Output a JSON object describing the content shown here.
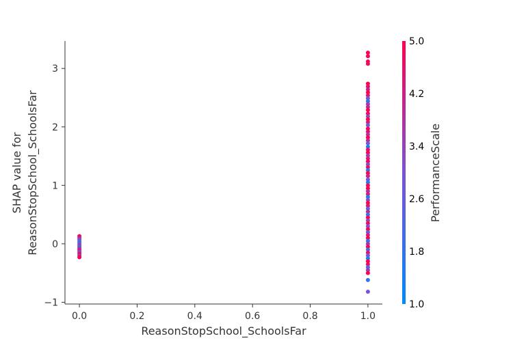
{
  "chart_data": {
    "type": "scatter",
    "title": "",
    "xlabel": "ReasonStopSchool_SchoolsFar",
    "ylabel_lines": [
      "SHAP value for",
      "ReasonStopSchool_SchoolsFar"
    ],
    "xlim": [
      -0.05,
      1.05
    ],
    "ylim": [
      -1.03,
      3.47
    ],
    "x_ticks": [
      0.0,
      0.2,
      0.4,
      0.6,
      0.8,
      1.0
    ],
    "x_tick_labels": [
      "0.0",
      "0.2",
      "0.4",
      "0.6",
      "0.8",
      "1.0"
    ],
    "y_ticks": [
      -1,
      0,
      1,
      2,
      3
    ],
    "y_tick_labels": [
      "−1",
      "0",
      "1",
      "2",
      "3"
    ],
    "grid": false,
    "colorbar": {
      "label": "PerformanceScale",
      "range": [
        1.0,
        5.0
      ],
      "ticks": [
        1.0,
        1.8,
        2.6,
        3.4,
        4.2,
        5.0
      ],
      "tick_labels": [
        "1.0",
        "1.8",
        "2.6",
        "3.4",
        "4.2",
        "5.0"
      ],
      "colors": [
        "#008afb",
        "#7c52d5",
        "#ff0052"
      ]
    },
    "series": [
      {
        "x": 0.0,
        "points": [
          {
            "y": 0.13,
            "c": 5.0
          },
          {
            "y": 0.1,
            "c": 4.0
          },
          {
            "y": 0.07,
            "c": 3.0
          },
          {
            "y": 0.04,
            "c": 2.5
          },
          {
            "y": 0.01,
            "c": 2.0
          },
          {
            "y": -0.02,
            "c": 3.5
          },
          {
            "y": -0.05,
            "c": 2.2
          },
          {
            "y": -0.08,
            "c": 3.8
          },
          {
            "y": -0.11,
            "c": 4.4
          },
          {
            "y": -0.14,
            "c": 3.0
          },
          {
            "y": -0.17,
            "c": 4.8
          },
          {
            "y": -0.2,
            "c": 3.6
          },
          {
            "y": -0.23,
            "c": 5.0
          }
        ]
      },
      {
        "x": 1.0,
        "points": [
          {
            "y": 3.27,
            "c": 5.0
          },
          {
            "y": 3.21,
            "c": 4.9
          },
          {
            "y": 3.12,
            "c": 5.0
          },
          {
            "y": 3.08,
            "c": 4.8
          },
          {
            "y": 2.74,
            "c": 5.0
          },
          {
            "y": 2.69,
            "c": 4.6
          },
          {
            "y": 2.64,
            "c": 4.2
          },
          {
            "y": 2.59,
            "c": 5.0
          },
          {
            "y": 2.54,
            "c": 4.5
          },
          {
            "y": 2.49,
            "c": 3.0
          },
          {
            "y": 2.44,
            "c": 1.8
          },
          {
            "y": 2.39,
            "c": 3.6
          },
          {
            "y": 2.34,
            "c": 4.0
          },
          {
            "y": 2.29,
            "c": 5.0
          },
          {
            "y": 2.23,
            "c": 4.8
          },
          {
            "y": 2.18,
            "c": 3.4
          },
          {
            "y": 2.13,
            "c": 5.0
          },
          {
            "y": 2.08,
            "c": 4.4
          },
          {
            "y": 2.03,
            "c": 2.8
          },
          {
            "y": 1.97,
            "c": 5.0
          },
          {
            "y": 1.92,
            "c": 4.6
          },
          {
            "y": 1.87,
            "c": 3.8
          },
          {
            "y": 1.82,
            "c": 5.0
          },
          {
            "y": 1.77,
            "c": 4.0
          },
          {
            "y": 1.72,
            "c": 3.0
          },
          {
            "y": 1.66,
            "c": 1.5
          },
          {
            "y": 1.61,
            "c": 4.8
          },
          {
            "y": 1.56,
            "c": 5.0
          },
          {
            "y": 1.51,
            "c": 3.6
          },
          {
            "y": 1.46,
            "c": 4.4
          },
          {
            "y": 1.41,
            "c": 5.0
          },
          {
            "y": 1.36,
            "c": 3.2
          },
          {
            "y": 1.31,
            "c": 4.6
          },
          {
            "y": 1.26,
            "c": 1.8
          },
          {
            "y": 1.21,
            "c": 5.0
          },
          {
            "y": 1.16,
            "c": 4.2
          },
          {
            "y": 1.1,
            "c": 3.0
          },
          {
            "y": 1.05,
            "c": 1.6
          },
          {
            "y": 1.0,
            "c": 4.8
          },
          {
            "y": 0.95,
            "c": 5.0
          },
          {
            "y": 0.9,
            "c": 3.8
          },
          {
            "y": 0.85,
            "c": 4.4
          },
          {
            "y": 0.8,
            "c": 1.5
          },
          {
            "y": 0.75,
            "c": 3.2
          },
          {
            "y": 0.7,
            "c": 5.0
          },
          {
            "y": 0.65,
            "c": 4.6
          },
          {
            "y": 0.6,
            "c": 2.4
          },
          {
            "y": 0.55,
            "c": 4.0
          },
          {
            "y": 0.5,
            "c": 1.8
          },
          {
            "y": 0.45,
            "c": 5.0
          },
          {
            "y": 0.4,
            "c": 3.4
          },
          {
            "y": 0.35,
            "c": 4.8
          },
          {
            "y": 0.3,
            "c": 3.0
          },
          {
            "y": 0.25,
            "c": 5.0
          },
          {
            "y": 0.2,
            "c": 2.6
          },
          {
            "y": 0.15,
            "c": 4.4
          },
          {
            "y": 0.1,
            "c": 5.0
          },
          {
            "y": 0.05,
            "c": 1.8
          },
          {
            "y": 0.0,
            "c": 3.6
          },
          {
            "y": -0.05,
            "c": 5.0
          },
          {
            "y": -0.1,
            "c": 2.2
          },
          {
            "y": -0.15,
            "c": 4.6
          },
          {
            "y": -0.2,
            "c": 3.0
          },
          {
            "y": -0.25,
            "c": 1.6
          },
          {
            "y": -0.3,
            "c": 5.0
          },
          {
            "y": -0.35,
            "c": 4.8
          },
          {
            "y": -0.4,
            "c": 2.4
          },
          {
            "y": -0.45,
            "c": 3.6
          },
          {
            "y": -0.5,
            "c": 5.0
          },
          {
            "y": -0.62,
            "c": 1.8
          },
          {
            "y": -0.82,
            "c": 3.0
          }
        ]
      }
    ]
  }
}
